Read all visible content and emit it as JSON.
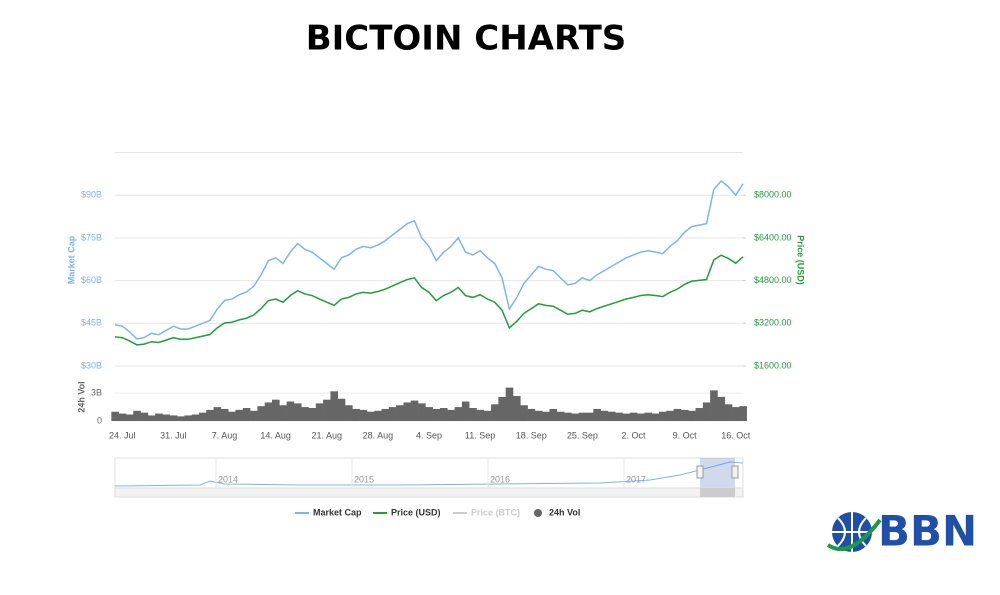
{
  "title": "BICTOIN CHARTS",
  "logo": "BBN",
  "chart_data": {
    "type": "line",
    "categories": [
      null,
      "24. Jul",
      null,
      null,
      null,
      null,
      null,
      null,
      "31. Jul",
      null,
      null,
      null,
      null,
      null,
      null,
      "7. Aug",
      null,
      null,
      null,
      null,
      null,
      null,
      "14. Aug",
      null,
      null,
      null,
      null,
      null,
      null,
      "21. Aug",
      null,
      null,
      null,
      null,
      null,
      null,
      "28. Aug",
      null,
      null,
      null,
      null,
      null,
      null,
      "4. Sep",
      null,
      null,
      null,
      null,
      null,
      null,
      "11. Sep",
      null,
      null,
      null,
      null,
      null,
      null,
      "18. Sep",
      null,
      null,
      null,
      null,
      null,
      null,
      "25. Sep",
      null,
      null,
      null,
      null,
      null,
      null,
      "2. Oct",
      null,
      null,
      null,
      null,
      null,
      null,
      "9. Oct",
      null,
      null,
      null,
      null,
      null,
      null,
      "16. Oct",
      null
    ],
    "ylabel": "Market Cap",
    "y2label": "Price (USD)",
    "y3label": "24h Vol",
    "ylim": [
      30,
      105
    ],
    "yticks": [
      {
        "value": 30,
        "label": "$30B"
      },
      {
        "value": 45,
        "label": "$45B"
      },
      {
        "value": 60,
        "label": "$60B"
      },
      {
        "value": 75,
        "label": "$75B"
      },
      {
        "value": 90,
        "label": "$90B"
      }
    ],
    "y2lim": [
      1600,
      9600
    ],
    "y2ticks": [
      {
        "value": 1600,
        "label": "$1600.00"
      },
      {
        "value": 3200,
        "label": "$3200.00"
      },
      {
        "value": 4800,
        "label": "$4800.00"
      },
      {
        "value": 6400,
        "label": "$6400.00"
      },
      {
        "value": 8000,
        "label": "$8000.00"
      }
    ],
    "y3lim": [
      0,
      5.5
    ],
    "y3ticks": [
      0,
      {
        "value": 3,
        "label": "3B"
      }
    ],
    "grid": true,
    "legend": "bottom",
    "series": [
      {
        "name": "Market Cap",
        "color": "#7cb5ec",
        "axis": "y",
        "values": [
          44.5,
          44,
          42,
          39.5,
          40,
          41.5,
          41,
          42.5,
          44,
          43,
          43,
          44,
          45,
          46,
          50,
          53,
          53.5,
          55,
          56,
          58,
          62,
          67,
          68,
          66,
          70,
          73,
          71,
          70,
          68,
          66,
          64,
          68,
          69,
          71,
          72,
          71.5,
          72.5,
          74,
          76,
          78,
          80,
          81,
          75,
          72,
          67,
          70,
          72,
          75,
          70,
          69,
          70.5,
          68,
          66,
          61,
          50,
          54,
          59,
          62,
          65,
          64,
          63.5,
          61,
          58.5,
          59,
          61,
          60,
          62,
          63.5,
          65,
          66.5,
          68,
          69,
          70,
          70.5,
          70,
          69.5,
          72,
          74,
          77,
          79,
          79.5,
          80,
          92,
          95,
          93,
          90,
          94
        ]
      },
      {
        "name": "Price (USD)",
        "color": "#1f9e3a",
        "axis": "y2",
        "values": [
          2690,
          2660,
          2540,
          2390,
          2420,
          2510,
          2480,
          2570,
          2660,
          2600,
          2600,
          2660,
          2720,
          2780,
          3030,
          3210,
          3240,
          3330,
          3390,
          3510,
          3750,
          4050,
          4110,
          3990,
          4240,
          4420,
          4300,
          4240,
          4110,
          3990,
          3870,
          4110,
          4170,
          4300,
          4360,
          4330,
          4390,
          4480,
          4600,
          4720,
          4840,
          4900,
          4540,
          4360,
          4050,
          4240,
          4360,
          4540,
          4240,
          4170,
          4270,
          4110,
          3990,
          3690,
          3030,
          3270,
          3570,
          3750,
          3930,
          3870,
          3840,
          3690,
          3540,
          3570,
          3690,
          3630,
          3750,
          3840,
          3930,
          4020,
          4110,
          4170,
          4240,
          4270,
          4240,
          4200,
          4360,
          4480,
          4660,
          4780,
          4810,
          4840,
          5570,
          5750,
          5630,
          5450,
          5690
        ]
      },
      {
        "name": "24h Vol",
        "color": "#666666",
        "axis": "y3",
        "type": "column",
        "values": [
          1.0,
          0.8,
          0.7,
          1.1,
          0.9,
          0.6,
          0.8,
          0.7,
          0.6,
          0.5,
          0.6,
          0.7,
          0.9,
          1.2,
          1.5,
          1.3,
          1.0,
          1.2,
          1.4,
          1.1,
          1.6,
          2.0,
          2.3,
          1.7,
          2.1,
          1.9,
          1.5,
          1.4,
          1.9,
          2.3,
          3.2,
          2.4,
          1.7,
          1.3,
          1.2,
          1.0,
          1.1,
          1.3,
          1.5,
          1.7,
          2.0,
          2.2,
          1.9,
          1.5,
          1.3,
          1.4,
          1.2,
          1.5,
          2.1,
          1.4,
          1.2,
          1.1,
          1.8,
          2.6,
          3.6,
          2.7,
          1.7,
          1.3,
          1.1,
          1.0,
          1.3,
          1.0,
          0.9,
          0.8,
          0.9,
          0.9,
          1.3,
          1.1,
          1.0,
          0.9,
          0.8,
          0.9,
          0.8,
          0.9,
          0.8,
          1.0,
          1.1,
          1.3,
          1.2,
          1.1,
          1.4,
          2.0,
          3.3,
          2.6,
          1.8,
          1.5,
          1.6
        ]
      }
    ],
    "hidden_series": [
      {
        "name": "Price (BTC)",
        "color": "#cccccc"
      }
    ],
    "navigator": {
      "labels": [
        "2014",
        "2015",
        "2016",
        "2017"
      ]
    }
  }
}
